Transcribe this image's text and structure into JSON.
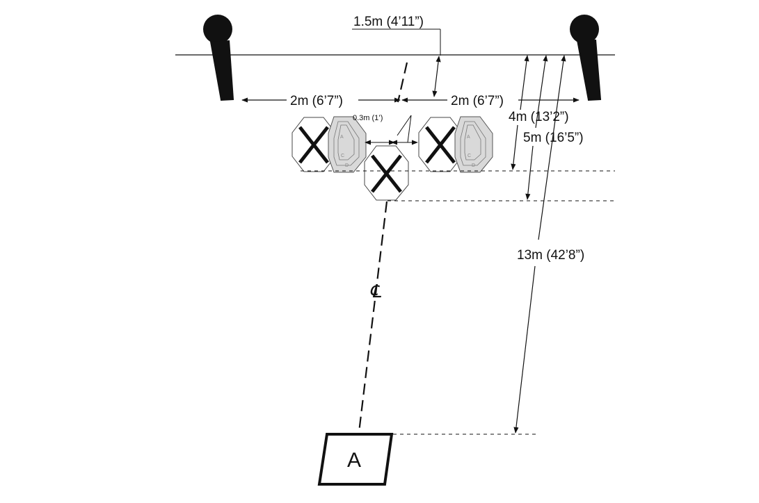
{
  "labels": {
    "berm_offset": "1.5m (4’11”)",
    "left_span": "2m (6’7”)",
    "right_span": "2m (6’7”)",
    "gap": "0.3m (1’)",
    "no_shoot_line": "4m (13’2”)",
    "center_no_shoot_line": "5m (16’5”)",
    "shooting_box_distance": "13m (42’8”)",
    "centerline": "℄",
    "shooting_box": "A"
  },
  "target_zone_letters": [
    "A",
    "C",
    "D"
  ],
  "colors": {
    "line": "#111111",
    "target_fill": "#d9d9d9",
    "target_outline": "#555555",
    "background": "#ffffff"
  }
}
